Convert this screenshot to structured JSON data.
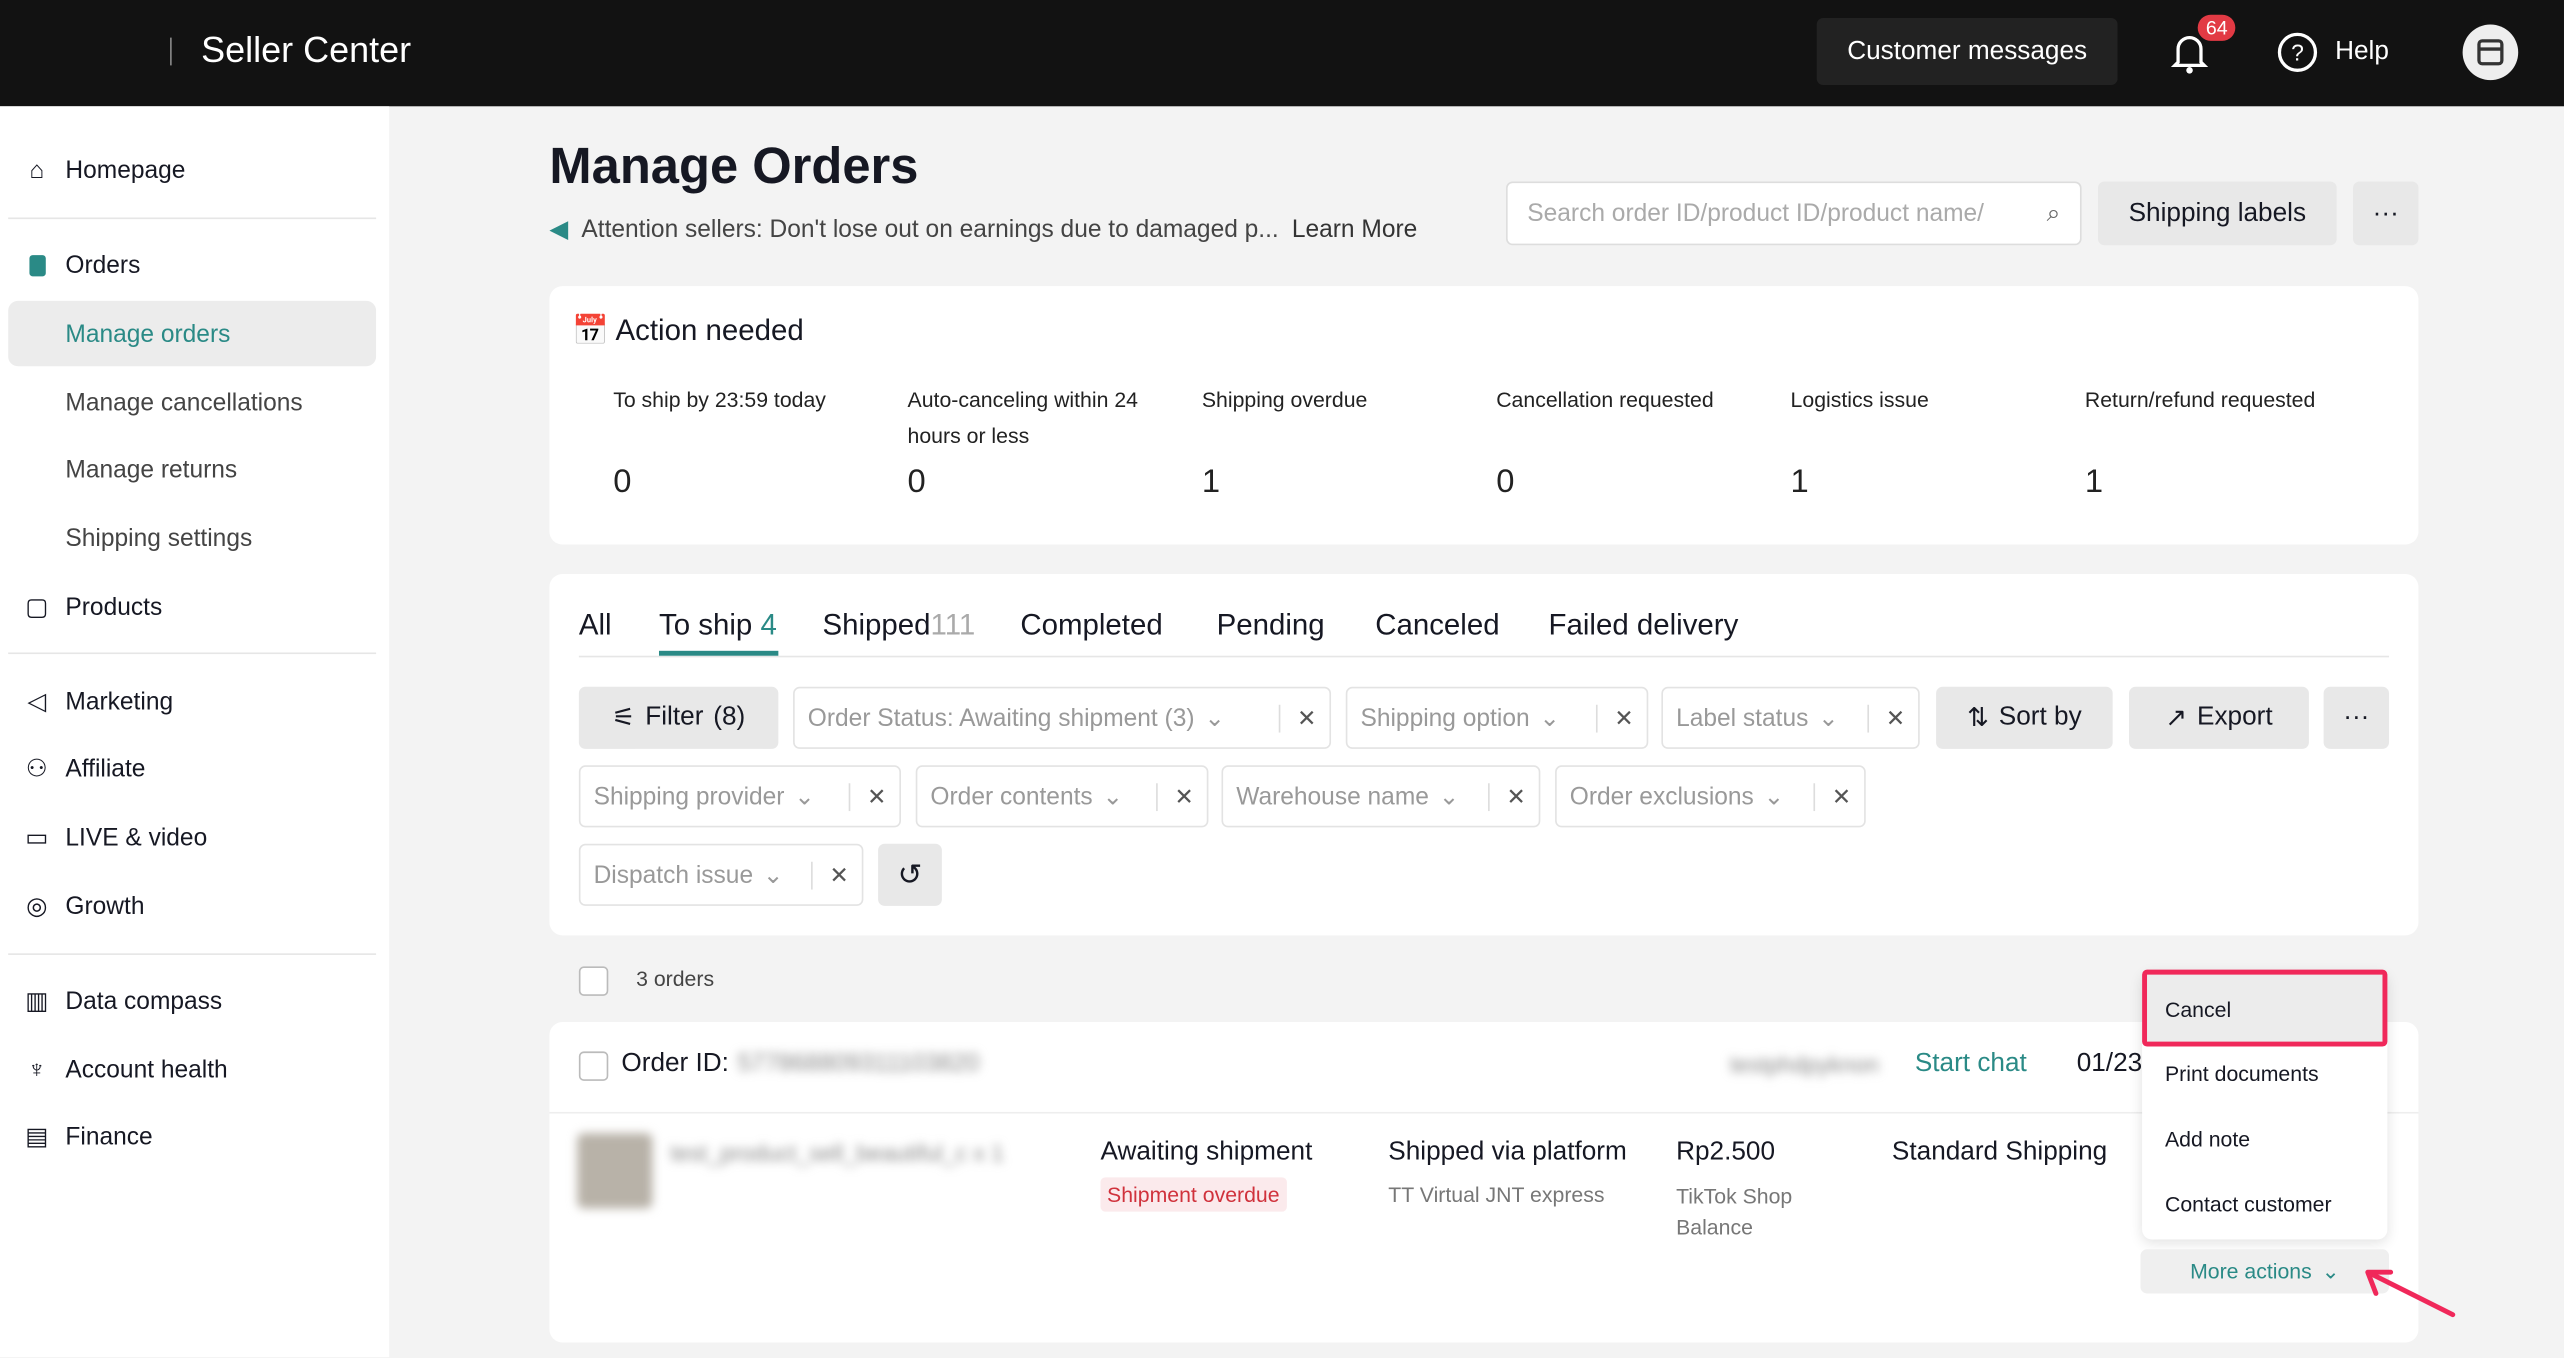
{
  "header": {
    "brand": "Seller Center",
    "customer_messages": "Customer messages",
    "notification_count": "64",
    "help": "Help"
  },
  "sidebar": {
    "items": [
      {
        "label": "Homepage",
        "icon": "home-icon"
      },
      {
        "label": "Orders",
        "icon": "orders-icon"
      },
      {
        "label": "Manage orders",
        "active": true
      },
      {
        "label": "Manage cancellations"
      },
      {
        "label": "Manage returns"
      },
      {
        "label": "Shipping settings"
      },
      {
        "label": "Products",
        "icon": "bag-icon"
      },
      {
        "label": "Marketing",
        "icon": "megaphone-icon"
      },
      {
        "label": "Affiliate",
        "icon": "users-icon"
      },
      {
        "label": "LIVE & video",
        "icon": "video-icon"
      },
      {
        "label": "Growth",
        "icon": "growth-icon"
      },
      {
        "label": "Data compass",
        "icon": "chart-icon"
      },
      {
        "label": "Account health",
        "icon": "trophy-icon"
      },
      {
        "label": "Finance",
        "icon": "wallet-icon"
      }
    ]
  },
  "page": {
    "title": "Manage Orders",
    "notice": "Attention sellers: Don't lose out on earnings due to damaged p...",
    "learn_more": "Learn More",
    "search_placeholder": "Search order ID/product ID/product name/",
    "shipping_labels": "Shipping labels",
    "more": "···"
  },
  "action_needed": {
    "title": "Action needed",
    "metrics": [
      {
        "label": "To ship by 23:59 today",
        "value": "0"
      },
      {
        "label": "Auto-canceling within 24 hours or less",
        "value": "0"
      },
      {
        "label": "Shipping overdue",
        "value": "1"
      },
      {
        "label": "Cancellation requested",
        "value": "0"
      },
      {
        "label": "Logistics issue",
        "value": "1"
      },
      {
        "label": "Return/refund requested",
        "value": "1"
      }
    ]
  },
  "tabs": [
    {
      "label": "All"
    },
    {
      "label": "To ship",
      "count": "4"
    },
    {
      "label": "Shipped",
      "count": "111"
    },
    {
      "label": "Completed"
    },
    {
      "label": "Pending"
    },
    {
      "label": "Canceled"
    },
    {
      "label": "Failed delivery"
    }
  ],
  "filters": {
    "filter": "Filter",
    "filter_count": "(8)",
    "order_status": "Order Status:  Awaiting shipment (3)",
    "shipping_option": "Shipping option",
    "label_status": "Label status",
    "sort_by": "Sort by",
    "export": "Export",
    "shipping_provider": "Shipping provider",
    "order_contents": "Order contents",
    "warehouse_name": "Warehouse name",
    "order_exclusions": "Order exclusions",
    "dispatch_issue": "Dispatch issue"
  },
  "orders": {
    "count_label": "3 orders",
    "order_id_label": "Order ID:",
    "order_id": "577868809311103820",
    "buyer": "testphdpyknon",
    "start_chat": "Start chat",
    "date": "01/23",
    "product_name": "test_product_sell_beautiful_c",
    "qty": "x 1",
    "status": "Awaiting shipment",
    "status_badge": "Shipment overdue",
    "shipping": "Shipped via platform",
    "carrier": "TT Virtual JNT express",
    "price": "Rp2.500",
    "payment": "TikTok Shop Balance",
    "shipping_option": "Standard Shipping",
    "more_actions": "More actions"
  },
  "more_actions_menu": [
    "Cancel",
    "Print documents",
    "Add note",
    "Contact customer"
  ],
  "colors": {
    "accent": "#2a8a86",
    "highlight": "#f0285a",
    "badge": "#e23a44"
  }
}
